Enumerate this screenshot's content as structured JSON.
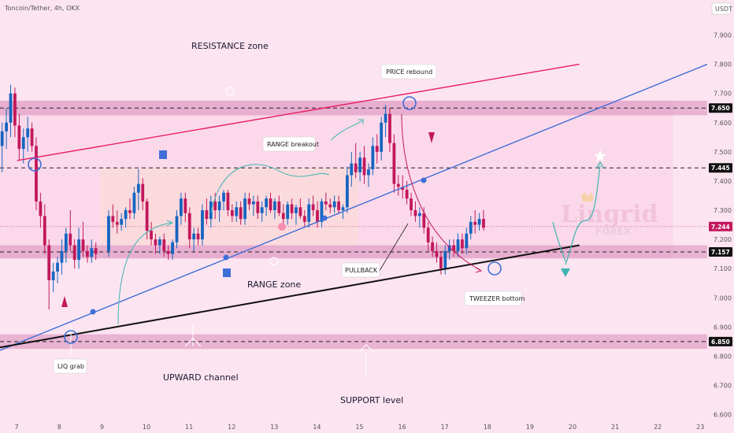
{
  "header": {
    "symbol_line": "Toncoin/Tether, 4h, OKX",
    "currency": "USDT"
  },
  "colors": {
    "background": "#fce4f1",
    "up": "#1565c0",
    "down": "#c2185b",
    "resistance_line": "#e91e63",
    "channel_line": "#3f6fd6",
    "support_line": "#111111",
    "zone": "#d98bb8",
    "range_box": "#fde7d3",
    "arrow_teal": "#3fb5b0",
    "arrow_red": "#c2185b"
  },
  "watermark": {
    "brand": "Lingrid",
    "sub": "FOREX"
  },
  "annotations": {
    "resistance_zone": "RESISTANCE zone",
    "range_zone": "RANGE zone",
    "upward_channel": "UPWARD channel",
    "support_level": "SUPPORT level",
    "price_rebound": "PRICE rebound",
    "range_breakout": "RANGE breakout",
    "pullback": "PULLBACK",
    "tweezer_bottom": "TWEEZER bottom",
    "liq_grab": "LIQ grab"
  },
  "chart_data": {
    "type": "candlestick",
    "title": "Toncoin/Tether, 4h, OKX",
    "ylabel": "USDT",
    "ylim": [
      6.58,
      8.02
    ],
    "y_ticks": [
      "7.900",
      "7.800",
      "7.700",
      "7.600",
      "7.500",
      "7.400",
      "7.300",
      "7.200",
      "7.100",
      "7.000",
      "6.900",
      "6.800",
      "6.700",
      "6.600"
    ],
    "x_ticks": [
      "7",
      "8",
      "9",
      "10",
      "11",
      "12",
      "13",
      "14",
      "15",
      "16",
      "17",
      "18",
      "19",
      "20",
      "21",
      "22",
      "23"
    ],
    "x_range": [
      6.6,
      23.2
    ],
    "price_tags": [
      {
        "label": "7.650",
        "value": 7.65,
        "style": "dark"
      },
      {
        "label": "7.445",
        "value": 7.445,
        "style": "dark"
      },
      {
        "label": "7.244",
        "value": 7.244,
        "style": "current"
      },
      {
        "label": "7.157",
        "value": 7.157,
        "style": "dark"
      },
      {
        "label": "6.850",
        "value": 6.85,
        "style": "dark"
      }
    ],
    "levels": [
      7.65,
      7.445,
      7.157,
      6.85
    ],
    "zones": [
      {
        "name": "resistance",
        "from": 7.625,
        "to": 7.675
      },
      {
        "name": "range-top",
        "from": 7.135,
        "to": 7.18
      },
      {
        "name": "support",
        "from": 6.825,
        "to": 6.875
      }
    ],
    "trend_lines": [
      {
        "name": "resistance line",
        "x1": 7.0,
        "y1": 7.47,
        "x2": 20.2,
        "y2": 7.8
      },
      {
        "name": "upward channel",
        "x1": 6.6,
        "y1": 6.82,
        "x2": 23.2,
        "y2": 7.8
      },
      {
        "name": "support line",
        "x1": 6.6,
        "y1": 6.83,
        "x2": 20.2,
        "y2": 7.18
      }
    ],
    "candles": [
      {
        "x": 6.65,
        "o": 7.52,
        "h": 7.6,
        "l": 7.43,
        "c": 7.57
      },
      {
        "x": 6.75,
        "o": 7.57,
        "h": 7.65,
        "l": 7.51,
        "c": 7.6
      },
      {
        "x": 6.85,
        "o": 7.6,
        "h": 7.73,
        "l": 7.55,
        "c": 7.7
      },
      {
        "x": 6.95,
        "o": 7.7,
        "h": 7.72,
        "l": 7.55,
        "c": 7.59
      },
      {
        "x": 7.05,
        "o": 7.59,
        "h": 7.63,
        "l": 7.47,
        "c": 7.51
      },
      {
        "x": 7.15,
        "o": 7.51,
        "h": 7.58,
        "l": 7.46,
        "c": 7.55
      },
      {
        "x": 7.25,
        "o": 7.55,
        "h": 7.62,
        "l": 7.5,
        "c": 7.58
      },
      {
        "x": 7.35,
        "o": 7.58,
        "h": 7.6,
        "l": 7.5,
        "c": 7.52
      },
      {
        "x": 7.45,
        "o": 7.52,
        "h": 7.55,
        "l": 7.3,
        "c": 7.33
      },
      {
        "x": 7.55,
        "o": 7.33,
        "h": 7.36,
        "l": 7.24,
        "c": 7.28
      },
      {
        "x": 7.65,
        "o": 7.28,
        "h": 7.32,
        "l": 7.15,
        "c": 7.18
      },
      {
        "x": 7.75,
        "o": 7.18,
        "h": 7.2,
        "l": 6.96,
        "c": 7.06
      },
      {
        "x": 7.85,
        "o": 7.06,
        "h": 7.12,
        "l": 7.02,
        "c": 7.09
      },
      {
        "x": 7.95,
        "o": 7.09,
        "h": 7.14,
        "l": 7.05,
        "c": 7.12
      },
      {
        "x": 8.05,
        "o": 7.12,
        "h": 7.2,
        "l": 7.08,
        "c": 7.16
      },
      {
        "x": 8.15,
        "o": 7.16,
        "h": 7.24,
        "l": 7.12,
        "c": 7.22
      },
      {
        "x": 8.25,
        "o": 7.22,
        "h": 7.3,
        "l": 7.16,
        "c": 7.18
      },
      {
        "x": 8.35,
        "o": 7.18,
        "h": 7.2,
        "l": 7.1,
        "c": 7.13
      },
      {
        "x": 8.45,
        "o": 7.13,
        "h": 7.24,
        "l": 7.1,
        "c": 7.2
      },
      {
        "x": 8.55,
        "o": 7.2,
        "h": 7.26,
        "l": 7.14,
        "c": 7.16
      },
      {
        "x": 8.65,
        "o": 7.16,
        "h": 7.18,
        "l": 7.12,
        "c": 7.14
      },
      {
        "x": 8.75,
        "o": 7.14,
        "h": 7.2,
        "l": 7.12,
        "c": 7.17
      },
      {
        "x": 8.85,
        "o": 7.17,
        "h": 7.19,
        "l": 7.13,
        "c": 7.15
      },
      {
        "x": 9.15,
        "o": 7.16,
        "h": 7.3,
        "l": 7.14,
        "c": 7.28
      },
      {
        "x": 9.25,
        "o": 7.28,
        "h": 7.32,
        "l": 7.24,
        "c": 7.26
      },
      {
        "x": 9.35,
        "o": 7.26,
        "h": 7.3,
        "l": 7.22,
        "c": 7.25
      },
      {
        "x": 9.45,
        "o": 7.25,
        "h": 7.29,
        "l": 7.23,
        "c": 7.27
      },
      {
        "x": 9.55,
        "o": 7.27,
        "h": 7.31,
        "l": 7.24,
        "c": 7.3
      },
      {
        "x": 9.65,
        "o": 7.3,
        "h": 7.34,
        "l": 7.27,
        "c": 7.29
      },
      {
        "x": 9.75,
        "o": 7.29,
        "h": 7.38,
        "l": 7.27,
        "c": 7.36
      },
      {
        "x": 9.85,
        "o": 7.36,
        "h": 7.44,
        "l": 7.3,
        "c": 7.39
      },
      {
        "x": 9.95,
        "o": 7.39,
        "h": 7.41,
        "l": 7.3,
        "c": 7.33
      },
      {
        "x": 10.05,
        "o": 7.33,
        "h": 7.34,
        "l": 7.2,
        "c": 7.23
      },
      {
        "x": 10.15,
        "o": 7.23,
        "h": 7.26,
        "l": 7.18,
        "c": 7.2
      },
      {
        "x": 10.25,
        "o": 7.2,
        "h": 7.22,
        "l": 7.15,
        "c": 7.18
      },
      {
        "x": 10.35,
        "o": 7.18,
        "h": 7.21,
        "l": 7.15,
        "c": 7.2
      },
      {
        "x": 10.45,
        "o": 7.2,
        "h": 7.22,
        "l": 7.14,
        "c": 7.16
      },
      {
        "x": 10.55,
        "o": 7.16,
        "h": 7.18,
        "l": 7.13,
        "c": 7.15
      },
      {
        "x": 10.65,
        "o": 7.15,
        "h": 7.2,
        "l": 7.13,
        "c": 7.19
      },
      {
        "x": 10.75,
        "o": 7.19,
        "h": 7.3,
        "l": 7.17,
        "c": 7.28
      },
      {
        "x": 10.85,
        "o": 7.28,
        "h": 7.36,
        "l": 7.25,
        "c": 7.34
      },
      {
        "x": 10.95,
        "o": 7.34,
        "h": 7.36,
        "l": 7.26,
        "c": 7.29
      },
      {
        "x": 11.05,
        "o": 7.29,
        "h": 7.31,
        "l": 7.17,
        "c": 7.2
      },
      {
        "x": 11.15,
        "o": 7.2,
        "h": 7.24,
        "l": 7.16,
        "c": 7.22
      },
      {
        "x": 11.25,
        "o": 7.22,
        "h": 7.24,
        "l": 7.18,
        "c": 7.2
      },
      {
        "x": 11.35,
        "o": 7.2,
        "h": 7.32,
        "l": 7.18,
        "c": 7.3
      },
      {
        "x": 11.45,
        "o": 7.3,
        "h": 7.34,
        "l": 7.25,
        "c": 7.27
      },
      {
        "x": 11.55,
        "o": 7.27,
        "h": 7.35,
        "l": 7.24,
        "c": 7.33
      },
      {
        "x": 11.65,
        "o": 7.33,
        "h": 7.36,
        "l": 7.27,
        "c": 7.3
      },
      {
        "x": 11.75,
        "o": 7.3,
        "h": 7.35,
        "l": 7.26,
        "c": 7.33
      },
      {
        "x": 11.85,
        "o": 7.33,
        "h": 7.37,
        "l": 7.3,
        "c": 7.36
      },
      {
        "x": 11.95,
        "o": 7.36,
        "h": 7.37,
        "l": 7.28,
        "c": 7.3
      },
      {
        "x": 12.05,
        "o": 7.3,
        "h": 7.32,
        "l": 7.26,
        "c": 7.28
      },
      {
        "x": 12.15,
        "o": 7.28,
        "h": 7.33,
        "l": 7.26,
        "c": 7.31
      },
      {
        "x": 12.25,
        "o": 7.31,
        "h": 7.33,
        "l": 7.25,
        "c": 7.27
      },
      {
        "x": 12.35,
        "o": 7.27,
        "h": 7.36,
        "l": 7.25,
        "c": 7.34
      },
      {
        "x": 12.45,
        "o": 7.34,
        "h": 7.36,
        "l": 7.3,
        "c": 7.32
      },
      {
        "x": 12.55,
        "o": 7.32,
        "h": 7.35,
        "l": 7.28,
        "c": 7.33
      },
      {
        "x": 12.65,
        "o": 7.33,
        "h": 7.35,
        "l": 7.27,
        "c": 7.29
      },
      {
        "x": 12.75,
        "o": 7.29,
        "h": 7.33,
        "l": 7.26,
        "c": 7.31
      },
      {
        "x": 12.85,
        "o": 7.31,
        "h": 7.35,
        "l": 7.28,
        "c": 7.34
      },
      {
        "x": 12.95,
        "o": 7.34,
        "h": 7.36,
        "l": 7.29,
        "c": 7.3
      },
      {
        "x": 13.05,
        "o": 7.3,
        "h": 7.34,
        "l": 7.27,
        "c": 7.33
      },
      {
        "x": 13.15,
        "o": 7.33,
        "h": 7.35,
        "l": 7.28,
        "c": 7.29
      },
      {
        "x": 13.25,
        "o": 7.29,
        "h": 7.32,
        "l": 7.24,
        "c": 7.27
      },
      {
        "x": 13.35,
        "o": 7.27,
        "h": 7.33,
        "l": 7.25,
        "c": 7.32
      },
      {
        "x": 13.45,
        "o": 7.32,
        "h": 7.34,
        "l": 7.27,
        "c": 7.29
      },
      {
        "x": 13.55,
        "o": 7.29,
        "h": 7.32,
        "l": 7.25,
        "c": 7.31
      },
      {
        "x": 13.65,
        "o": 7.31,
        "h": 7.34,
        "l": 7.27,
        "c": 7.28
      },
      {
        "x": 13.75,
        "o": 7.28,
        "h": 7.3,
        "l": 7.24,
        "c": 7.26
      },
      {
        "x": 13.85,
        "o": 7.26,
        "h": 7.34,
        "l": 7.24,
        "c": 7.32
      },
      {
        "x": 13.95,
        "o": 7.32,
        "h": 7.35,
        "l": 7.28,
        "c": 7.3
      },
      {
        "x": 14.05,
        "o": 7.3,
        "h": 7.33,
        "l": 7.24,
        "c": 7.26
      },
      {
        "x": 14.15,
        "o": 7.26,
        "h": 7.34,
        "l": 7.24,
        "c": 7.33
      },
      {
        "x": 14.25,
        "o": 7.33,
        "h": 7.36,
        "l": 7.3,
        "c": 7.32
      },
      {
        "x": 14.35,
        "o": 7.32,
        "h": 7.34,
        "l": 7.29,
        "c": 7.31
      },
      {
        "x": 14.45,
        "o": 7.31,
        "h": 7.35,
        "l": 7.29,
        "c": 7.33
      },
      {
        "x": 14.55,
        "o": 7.33,
        "h": 7.35,
        "l": 7.29,
        "c": 7.3
      },
      {
        "x": 14.65,
        "o": 7.3,
        "h": 7.32,
        "l": 7.27,
        "c": 7.31
      },
      {
        "x": 14.75,
        "o": 7.31,
        "h": 7.45,
        "l": 7.29,
        "c": 7.42
      },
      {
        "x": 14.85,
        "o": 7.42,
        "h": 7.5,
        "l": 7.38,
        "c": 7.46
      },
      {
        "x": 14.95,
        "o": 7.46,
        "h": 7.53,
        "l": 7.41,
        "c": 7.43
      },
      {
        "x": 15.05,
        "o": 7.43,
        "h": 7.5,
        "l": 7.4,
        "c": 7.48
      },
      {
        "x": 15.15,
        "o": 7.48,
        "h": 7.52,
        "l": 7.39,
        "c": 7.42
      },
      {
        "x": 15.25,
        "o": 7.42,
        "h": 7.46,
        "l": 7.38,
        "c": 7.44
      },
      {
        "x": 15.35,
        "o": 7.44,
        "h": 7.55,
        "l": 7.42,
        "c": 7.52
      },
      {
        "x": 15.45,
        "o": 7.52,
        "h": 7.56,
        "l": 7.46,
        "c": 7.5
      },
      {
        "x": 15.55,
        "o": 7.5,
        "h": 7.62,
        "l": 7.47,
        "c": 7.6
      },
      {
        "x": 15.65,
        "o": 7.6,
        "h": 7.66,
        "l": 7.55,
        "c": 7.63
      },
      {
        "x": 15.75,
        "o": 7.63,
        "h": 7.65,
        "l": 7.5,
        "c": 7.53
      },
      {
        "x": 15.85,
        "o": 7.53,
        "h": 7.56,
        "l": 7.36,
        "c": 7.39
      },
      {
        "x": 15.95,
        "o": 7.39,
        "h": 7.42,
        "l": 7.35,
        "c": 7.38
      },
      {
        "x": 16.05,
        "o": 7.38,
        "h": 7.42,
        "l": 7.34,
        "c": 7.37
      },
      {
        "x": 16.15,
        "o": 7.37,
        "h": 7.4,
        "l": 7.32,
        "c": 7.34
      },
      {
        "x": 16.25,
        "o": 7.34,
        "h": 7.36,
        "l": 7.28,
        "c": 7.3
      },
      {
        "x": 16.35,
        "o": 7.3,
        "h": 7.33,
        "l": 7.26,
        "c": 7.28
      },
      {
        "x": 16.45,
        "o": 7.28,
        "h": 7.31,
        "l": 7.24,
        "c": 7.29
      },
      {
        "x": 16.55,
        "o": 7.29,
        "h": 7.31,
        "l": 7.22,
        "c": 7.24
      },
      {
        "x": 16.65,
        "o": 7.24,
        "h": 7.26,
        "l": 7.16,
        "c": 7.19
      },
      {
        "x": 16.75,
        "o": 7.19,
        "h": 7.21,
        "l": 7.14,
        "c": 7.16
      },
      {
        "x": 16.85,
        "o": 7.16,
        "h": 7.19,
        "l": 7.12,
        "c": 7.14
      },
      {
        "x": 16.95,
        "o": 7.14,
        "h": 7.16,
        "l": 7.08,
        "c": 7.1
      },
      {
        "x": 17.05,
        "o": 7.1,
        "h": 7.18,
        "l": 7.08,
        "c": 7.16
      },
      {
        "x": 17.15,
        "o": 7.16,
        "h": 7.2,
        "l": 7.13,
        "c": 7.18
      },
      {
        "x": 17.25,
        "o": 7.18,
        "h": 7.2,
        "l": 7.14,
        "c": 7.16
      },
      {
        "x": 17.35,
        "o": 7.16,
        "h": 7.22,
        "l": 7.14,
        "c": 7.2
      },
      {
        "x": 17.45,
        "o": 7.2,
        "h": 7.22,
        "l": 7.15,
        "c": 7.17
      },
      {
        "x": 17.55,
        "o": 7.17,
        "h": 7.24,
        "l": 7.15,
        "c": 7.22
      },
      {
        "x": 17.65,
        "o": 7.22,
        "h": 7.28,
        "l": 7.2,
        "c": 7.26
      },
      {
        "x": 17.75,
        "o": 7.26,
        "h": 7.3,
        "l": 7.22,
        "c": 7.25
      },
      {
        "x": 17.85,
        "o": 7.25,
        "h": 7.29,
        "l": 7.23,
        "c": 7.27
      },
      {
        "x": 17.95,
        "o": 7.27,
        "h": 7.3,
        "l": 7.23,
        "c": 7.24
      }
    ]
  }
}
